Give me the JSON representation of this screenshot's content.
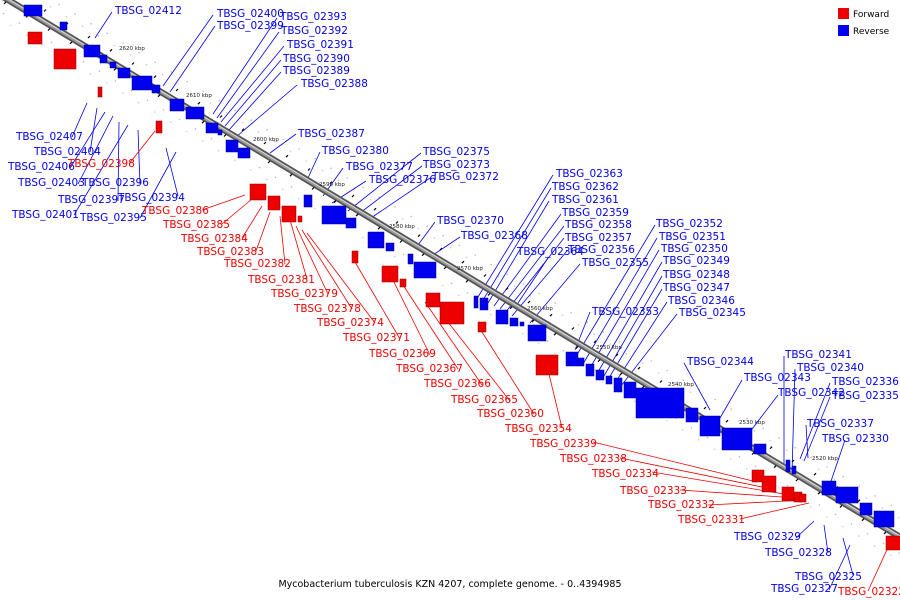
{
  "colors": {
    "forward": "#ee0000",
    "reverse": "#0000ee",
    "backbone": "#777777"
  },
  "legend": {
    "forward_label": "Forward",
    "reverse_label": "Reverse"
  },
  "caption": "Mycobacterium tuberculosis KZN 4207, complete genome. - 0..4394985",
  "ticks": [
    "2620 kbp",
    "2610 kbp",
    "2600 kbp",
    "2590 kbp",
    "2580 kbp",
    "2570 kbp",
    "2560 kbp",
    "2550 kbp",
    "2540 kbp",
    "2530 kbp",
    "2520 kbp"
  ],
  "reverse_labels": [
    "TBSG_02412",
    "TBSG_02400",
    "TBSG_02399",
    "TBSG_02393",
    "TBSG_02392",
    "TBSG_02391",
    "TBSG_02390",
    "TBSG_02389",
    "TBSG_02388",
    "TBSG_02387",
    "TBSG_02380",
    "TBSG_02377",
    "TBSG_02376",
    "TBSG_02375",
    "TBSG_02373",
    "TBSG_02372",
    "TBSG_02363",
    "TBSG_02362",
    "TBSG_02361",
    "TBSG_02359",
    "TBSG_02358",
    "TBSG_02357",
    "TBSG_02356",
    "TBSG_02355",
    "TBSG_02370",
    "TBSG_02368",
    "TBSG_02364",
    "TBSG_02352",
    "TBSG_02351",
    "TBSG_02350",
    "TBSG_02349",
    "TBSG_02348",
    "TBSG_02347",
    "TBSG_02346",
    "TBSG_02345",
    "TBSG_02353",
    "TBSG_02344",
    "TBSG_02343",
    "TBSG_02342",
    "TBSG_02341",
    "TBSG_02340",
    "TBSG_02336",
    "TBSG_02335",
    "TBSG_02337",
    "TBSG_02330",
    "TBSG_02407",
    "TBSG_02404",
    "TBSG_02406",
    "TBSG_02403",
    "TBSG_02397",
    "TBSG_02401",
    "TBSG_02396",
    "TBSG_02394",
    "TBSG_02395",
    "TBSG_02329",
    "TBSG_02328",
    "TBSG_02325",
    "TBSG_02327"
  ],
  "forward_labels": [
    "TBSG_02398",
    "TBSG_02386",
    "TBSG_02385",
    "TBSG_02384",
    "TBSG_02383",
    "TBSG_02382",
    "TBSG_02381",
    "TBSG_02379",
    "TBSG_02378",
    "TBSG_02374",
    "TBSG_02371",
    "TBSG_02369",
    "TBSG_02367",
    "TBSG_02366",
    "TBSG_02365",
    "TBSG_02360",
    "TBSG_02354",
    "TBSG_02339",
    "TBSG_02338",
    "TBSG_02334",
    "TBSG_02333",
    "TBSG_02332",
    "TBSG_02331",
    "TBSG_02322"
  ]
}
